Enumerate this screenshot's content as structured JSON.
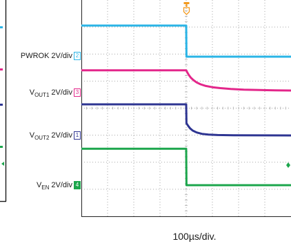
{
  "chart_data": {
    "type": "line",
    "xlabel": "100µs/div.",
    "xlim": [
      -400,
      400
    ],
    "grid": true,
    "legend_position": "left",
    "markers": {
      "trigger_icon": "trigger-marker-icon",
      "trigger_color": "#f39a1e",
      "level_icon": "ch4-level-marker-icon"
    },
    "series": [
      {
        "label": "PWROK",
        "label_sub": "",
        "scale": "2V/div",
        "channel": "2",
        "color": "#2ab4e6",
        "x": [
          -400,
          0,
          1,
          400
        ],
        "y": [
          2.3,
          2.3,
          0,
          0
        ]
      },
      {
        "label": "V",
        "label_sub": "OUT1",
        "scale": "2V/div",
        "channel": "3",
        "color": "#e3268a",
        "x": [
          -400,
          0,
          4,
          10,
          18,
          28,
          40,
          55,
          75,
          100,
          130,
          170,
          220,
          280,
          340,
          400
        ],
        "y": [
          1.6,
          1.6,
          1.45,
          1.25,
          1.05,
          0.87,
          0.7,
          0.56,
          0.44,
          0.35,
          0.28,
          0.22,
          0.17,
          0.14,
          0.12,
          0.1
        ]
      },
      {
        "label": "V",
        "label_sub": "OUT2",
        "scale": "2V/div",
        "channel": "1",
        "color": "#2e3592",
        "x": [
          -400,
          0,
          1,
          3,
          8,
          15,
          25,
          40,
          60,
          85,
          120,
          180,
          400
        ],
        "y": [
          2.3,
          2.3,
          0.9,
          0.85,
          0.7,
          0.52,
          0.36,
          0.22,
          0.12,
          0.06,
          0.03,
          0.01,
          0
        ]
      },
      {
        "label": "V",
        "label_sub": "EN",
        "scale": "2V/div",
        "channel": "4",
        "color": "#1ca64c",
        "x": [
          -400,
          0,
          1,
          400
        ],
        "y": [
          2.7,
          2.7,
          0,
          0
        ]
      }
    ]
  }
}
